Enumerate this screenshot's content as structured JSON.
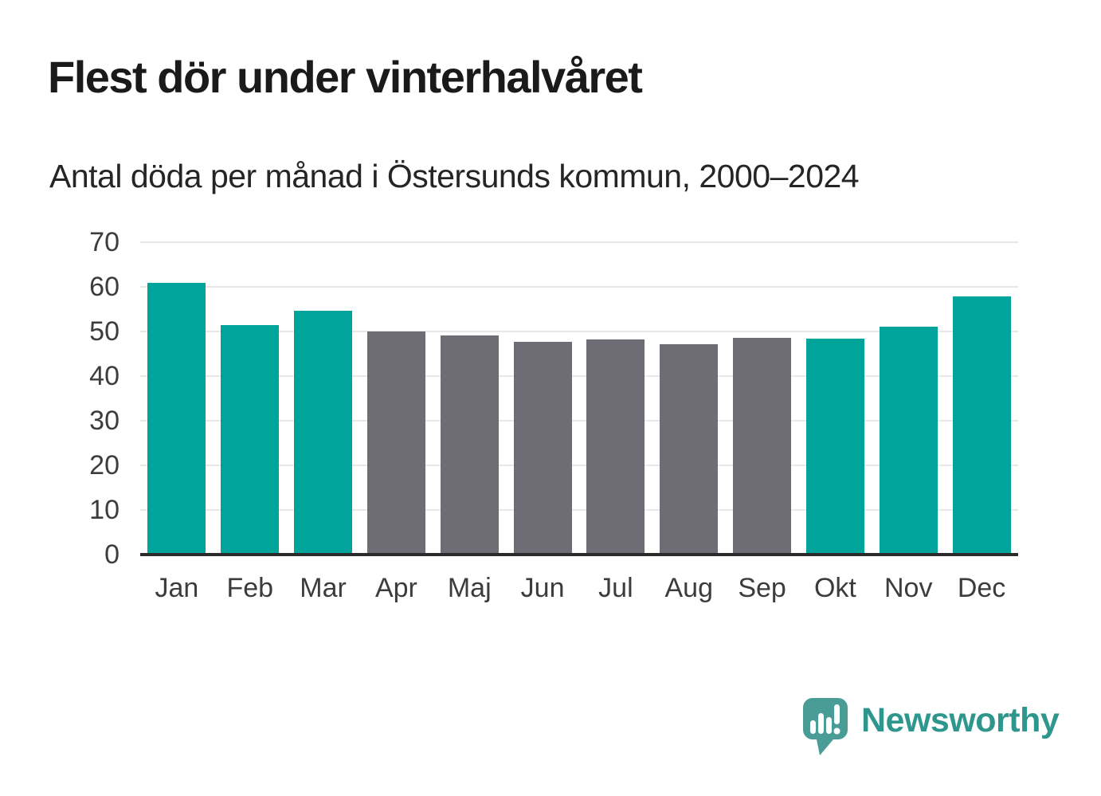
{
  "chart_data": {
    "type": "bar",
    "title": "Flest dör under vinterhalvåret",
    "subtitle": "Antal döda per månad i Östersunds kommun, 2000–2024",
    "categories": [
      "Jan",
      "Feb",
      "Mar",
      "Apr",
      "Maj",
      "Jun",
      "Jul",
      "Aug",
      "Sep",
      "Okt",
      "Nov",
      "Dec"
    ],
    "values": [
      60.5,
      51.0,
      54.3,
      49.7,
      48.8,
      47.3,
      47.8,
      46.8,
      48.2,
      48.0,
      50.8,
      57.5
    ],
    "bar_colors": [
      "teal",
      "teal",
      "teal",
      "gray",
      "gray",
      "gray",
      "gray",
      "gray",
      "gray",
      "teal",
      "teal",
      "teal"
    ],
    "colors": {
      "teal": "#00a49a",
      "gray": "#6e6d76"
    },
    "xlabel": "",
    "ylabel": "",
    "ylim": [
      0,
      70
    ],
    "yticks": [
      0,
      10,
      20,
      30,
      40,
      50,
      60,
      70
    ],
    "grid": true,
    "legend": "none"
  },
  "logo": {
    "text": "Newsworthy",
    "text_color": "#2f968e",
    "bubble_color": "#4a9c96",
    "icon": "newsworthy-speech-bubble-bar-chart-icon"
  }
}
